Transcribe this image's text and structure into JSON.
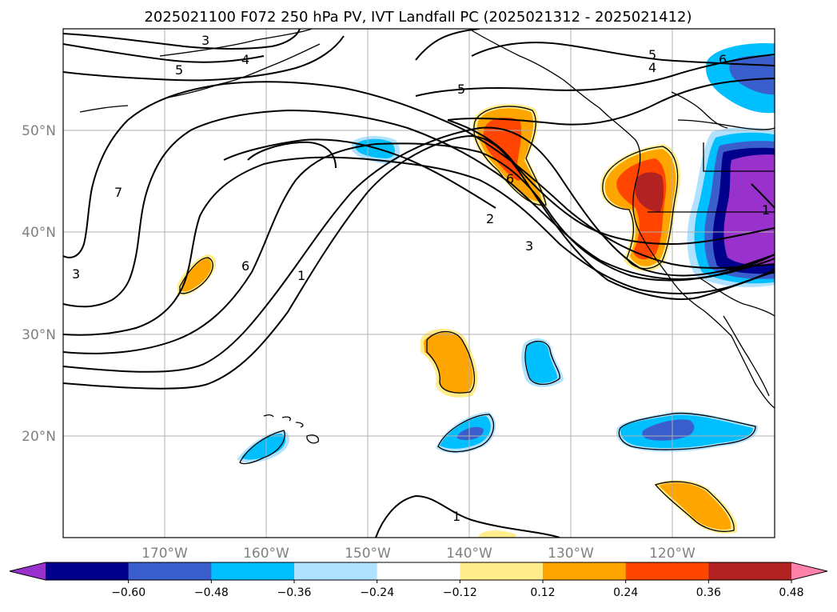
{
  "title": "2025021100 F072 250 hPa PV, IVT Landfall PC (2025021312 - 2025021412)",
  "map": {
    "lon_range": [
      -180,
      -110
    ],
    "lat_range": [
      10,
      60
    ],
    "lon_ticks": [
      {
        "lon": -170,
        "label": "170°W"
      },
      {
        "lon": -160,
        "label": "160°W"
      },
      {
        "lon": -150,
        "label": "150°W"
      },
      {
        "lon": -140,
        "label": "140°W"
      },
      {
        "lon": -130,
        "label": "130°W"
      },
      {
        "lon": -120,
        "label": "120°W"
      }
    ],
    "lat_ticks": [
      {
        "lat": 20,
        "label": "20°N"
      },
      {
        "lat": 30,
        "label": "30°N"
      },
      {
        "lat": 40,
        "label": "40°N"
      },
      {
        "lat": 50,
        "label": "50°N"
      }
    ],
    "grid": true,
    "contour_labels": [
      "3",
      "4",
      "5",
      "7",
      "6",
      "3",
      "1",
      "5",
      "2",
      "3",
      "6",
      "5",
      "4",
      "6",
      "1",
      "1"
    ]
  },
  "colorbar": {
    "colors": [
      "#9932CC",
      "#00008B",
      "#3A5FCD",
      "#00BFFF",
      "#B0E2FF",
      "#FFFFFF",
      "#FFEC8B",
      "#FFA500",
      "#FF4500",
      "#B22222",
      "#FF82AB"
    ],
    "ticks": [
      "−0.60",
      "−0.48",
      "−0.36",
      "−0.24",
      "−0.12",
      "0.12",
      "0.24",
      "0.36",
      "0.48",
      "0.60"
    ]
  }
}
